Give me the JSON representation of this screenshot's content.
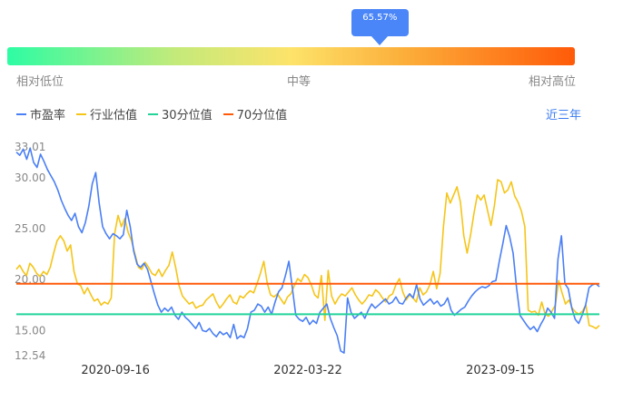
{
  "gauge": {
    "percentile": 65.57,
    "percentile_label": "65.57%",
    "labels": {
      "low": "相对低位",
      "mid": "中等",
      "high": "相对高位"
    }
  },
  "legend": {
    "items": [
      {
        "label": "市盈率",
        "color": "#4a7ff5"
      },
      {
        "label": "行业估值",
        "color": "#f5c518"
      },
      {
        "label": "30分位值",
        "color": "#22d39a"
      },
      {
        "label": "70分位值",
        "color": "#ff5a0a"
      }
    ]
  },
  "period_selector": {
    "label": "近三年"
  },
  "chart_data": {
    "type": "line",
    "x_tick_labels": [
      "2020-09-16",
      "2022-03-22",
      "2023-09-15"
    ],
    "y_tick_labels": [
      "33.01",
      "30.00",
      "25.00",
      "20.00",
      "15.00",
      "12.54"
    ],
    "ylim": [
      12.54,
      33.01
    ],
    "grid": false,
    "series": [
      {
        "name": "市盈率",
        "color": "#4a7ff5",
        "values": [
          32.5,
          32.2,
          32.8,
          31.8,
          32.9,
          31.5,
          31.0,
          32.3,
          31.6,
          30.8,
          30.2,
          29.6,
          28.8,
          27.8,
          27.0,
          26.3,
          25.8,
          26.5,
          25.2,
          24.6,
          25.6,
          27.2,
          29.4,
          30.5,
          27.5,
          25.2,
          24.5,
          24.0,
          24.5,
          24.3,
          24.0,
          24.4,
          26.8,
          25.2,
          22.8,
          21.5,
          21.2,
          21.6,
          21.0,
          19.8,
          18.6,
          17.5,
          16.8,
          17.2,
          16.9,
          17.3,
          16.5,
          16.1,
          16.8,
          16.3,
          16.0,
          15.6,
          15.2,
          15.8,
          15.0,
          14.9,
          15.2,
          14.7,
          14.4,
          14.9,
          14.6,
          14.8,
          14.3,
          15.6,
          14.2,
          14.5,
          14.3,
          15.2,
          16.8,
          17.0,
          17.6,
          17.4,
          16.8,
          17.3,
          16.6,
          17.8,
          18.8,
          19.2,
          20.4,
          21.8,
          19.2,
          16.5,
          16.1,
          15.9,
          16.3,
          15.6,
          16.0,
          15.7,
          16.8,
          17.2,
          17.6,
          16.2,
          15.3,
          14.5,
          13.0,
          12.8,
          18.2,
          16.8,
          16.2,
          16.5,
          16.8,
          16.2,
          17.0,
          17.6,
          17.2,
          17.5,
          17.8,
          18.1,
          17.6,
          17.8,
          18.3,
          17.7,
          17.6,
          18.2,
          18.6,
          18.2,
          19.5,
          18.1,
          17.5,
          17.8,
          18.1,
          17.6,
          17.9,
          17.4,
          17.6,
          18.2,
          17.0,
          16.5,
          16.8,
          17.1,
          17.3,
          17.9,
          18.4,
          18.8,
          19.1,
          19.3,
          19.2,
          19.4,
          19.8,
          19.9,
          21.8,
          23.5,
          25.3,
          24.2,
          22.6,
          19.2,
          16.5,
          16.0,
          15.5,
          15.1,
          15.4,
          14.9,
          15.6,
          16.2,
          17.2,
          16.8,
          16.2,
          22.0,
          24.3,
          19.6,
          19.1,
          17.2,
          16.1,
          15.7,
          16.5,
          17.5,
          19.2,
          19.5,
          19.6,
          19.3
        ]
      },
      {
        "name": "行业估值",
        "color": "#f5c518",
        "values": [
          21.0,
          21.4,
          20.8,
          20.4,
          21.6,
          21.2,
          20.6,
          20.3,
          20.8,
          20.5,
          21.2,
          22.6,
          23.8,
          24.3,
          23.8,
          22.8,
          23.4,
          20.8,
          19.6,
          19.4,
          18.6,
          19.2,
          18.5,
          17.9,
          18.1,
          17.5,
          17.8,
          17.6,
          18.2,
          24.5,
          26.3,
          25.2,
          26.0,
          24.6,
          23.8,
          22.5,
          21.2,
          21.0,
          21.7,
          21.2,
          20.6,
          20.4,
          21.0,
          20.3,
          20.9,
          21.4,
          22.7,
          21.2,
          19.4,
          18.4,
          18.0,
          17.6,
          17.8,
          17.2,
          17.4,
          17.5,
          18.0,
          18.3,
          18.6,
          17.8,
          17.2,
          17.6,
          18.1,
          18.5,
          17.8,
          17.6,
          18.4,
          18.2,
          18.6,
          18.9,
          18.7,
          19.6,
          20.6,
          21.8,
          19.7,
          18.5,
          18.3,
          18.6,
          18.1,
          17.6,
          18.3,
          18.6,
          19.4,
          20.1,
          19.8,
          20.5,
          20.2,
          19.5,
          18.5,
          18.2,
          20.4,
          16.0,
          20.9,
          18.4,
          17.6,
          18.2,
          18.6,
          18.4,
          18.8,
          19.2,
          18.5,
          18.0,
          17.6,
          18.0,
          18.5,
          18.4,
          19.0,
          18.7,
          18.2,
          17.8,
          18.4,
          18.6,
          19.5,
          20.1,
          18.8,
          18.0,
          18.5,
          18.2,
          17.8,
          19.2,
          18.5,
          18.8,
          19.5,
          20.8,
          19.1,
          20.6,
          25.2,
          28.5,
          27.5,
          28.3,
          29.1,
          27.6,
          24.3,
          22.6,
          24.4,
          26.5,
          28.3,
          27.8,
          28.3,
          26.8,
          25.3,
          27.2,
          29.8,
          29.6,
          28.5,
          28.8,
          29.6,
          28.2,
          27.6,
          26.7,
          25.2,
          17.0,
          16.8,
          16.9,
          16.5,
          17.8,
          16.6,
          16.4,
          16.9,
          17.5,
          19.9,
          18.7,
          17.6,
          18.0,
          17.2,
          16.8,
          16.6,
          16.9,
          17.5,
          15.5,
          15.4,
          15.2,
          15.5
        ]
      },
      {
        "name": "30分位值",
        "color": "#22d39a",
        "values": [
          16.6,
          16.6
        ]
      },
      {
        "name": "70分位值",
        "color": "#ff5a0a",
        "values": [
          19.6,
          19.6
        ]
      }
    ]
  }
}
